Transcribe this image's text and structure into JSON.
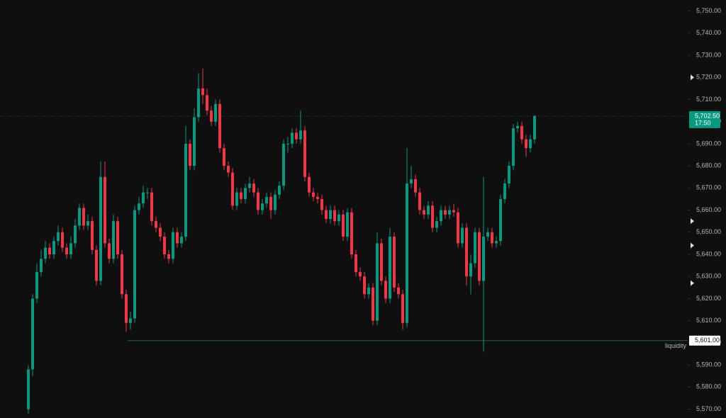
{
  "chart_data": {
    "type": "candlestick",
    "up_color": "#089981",
    "down_color": "#f23645",
    "ylim": [
      5566,
      5755
    ],
    "yticks": [
      {
        "value": 5570,
        "label": "5,570.00"
      },
      {
        "value": 5580,
        "label": "5,580.00"
      },
      {
        "value": 5590,
        "label": "5,590.00"
      },
      {
        "value": 5600,
        "label": "5,600.00"
      },
      {
        "value": 5610,
        "label": "5,610.00"
      },
      {
        "value": 5620,
        "label": "5,620.00"
      },
      {
        "value": 5630,
        "label": "5,630.00"
      },
      {
        "value": 5640,
        "label": "5,640.00"
      },
      {
        "value": 5650,
        "label": "5,650.00"
      },
      {
        "value": 5660,
        "label": "5,660.00"
      },
      {
        "value": 5670,
        "label": "5,670.00"
      },
      {
        "value": 5680,
        "label": "5,680.00"
      },
      {
        "value": 5690,
        "label": "5,690.00"
      },
      {
        "value": 5700,
        "label": "5,700.00"
      },
      {
        "value": 5710,
        "label": "5,710.00"
      },
      {
        "value": 5720,
        "label": "5,720.00"
      },
      {
        "value": 5730,
        "label": "5,730.00"
      },
      {
        "value": 5740,
        "label": "5,740.00"
      },
      {
        "value": 5750,
        "label": "5,750.00"
      }
    ],
    "open": [
      5570,
      5588,
      5620,
      5632,
      5638,
      5643,
      5640,
      5646,
      5650,
      5643,
      5640,
      5645,
      5653,
      5661,
      5653,
      5655,
      5642,
      5628,
      5675,
      5645,
      5638,
      5655,
      5640,
      5622,
      5609,
      5611,
      5660,
      5663,
      5668,
      5668,
      5655,
      5652,
      5648,
      5640,
      5638,
      5650,
      5645,
      5648,
      5690,
      5680,
      5702,
      5715,
      5712,
      5705,
      5700,
      5708,
      5688,
      5680,
      5677,
      5662,
      5668,
      5665,
      5670,
      5672,
      5668,
      5660,
      5663,
      5666,
      5660,
      5667,
      5671,
      5690,
      5690,
      5695,
      5692,
      5696,
      5675,
      5668,
      5666,
      5665,
      5660,
      5656,
      5660,
      5655,
      5658,
      5648,
      5659,
      5640,
      5632,
      5630,
      5622,
      5625,
      5610,
      5645,
      5628,
      5620,
      5648,
      5625,
      5622,
      5609,
      5672,
      5674,
      5668,
      5660,
      5658,
      5662,
      5652,
      5655,
      5660,
      5658,
      5660,
      5659,
      5645,
      5652,
      5630,
      5636,
      5650,
      5628,
      5648,
      5650,
      5645,
      5646,
      5665,
      5672,
      5680,
      5697,
      5698,
      5692,
      5688,
      5692
    ],
    "high": [
      5590,
      5622,
      5636,
      5642,
      5646,
      5645,
      5648,
      5653,
      5652,
      5645,
      5648,
      5656,
      5663,
      5663,
      5658,
      5657,
      5644,
      5682,
      5682,
      5647,
      5658,
      5657,
      5642,
      5624,
      5614,
      5662,
      5666,
      5671,
      5670,
      5670,
      5657,
      5654,
      5650,
      5642,
      5652,
      5652,
      5650,
      5698,
      5692,
      5706,
      5722,
      5724,
      5715,
      5707,
      5710,
      5710,
      5690,
      5682,
      5679,
      5670,
      5670,
      5672,
      5675,
      5674,
      5670,
      5665,
      5668,
      5668,
      5669,
      5673,
      5692,
      5693,
      5697,
      5697,
      5705,
      5698,
      5677,
      5670,
      5668,
      5667,
      5662,
      5662,
      5662,
      5660,
      5660,
      5661,
      5661,
      5642,
      5634,
      5632,
      5627,
      5627,
      5650,
      5647,
      5630,
      5652,
      5650,
      5627,
      5624,
      5688,
      5680,
      5676,
      5670,
      5662,
      5664,
      5664,
      5657,
      5662,
      5662,
      5662,
      5663,
      5661,
      5654,
      5654,
      5640,
      5652,
      5652,
      5675,
      5652,
      5652,
      5648,
      5667,
      5674,
      5682,
      5699,
      5700,
      5700,
      5694,
      5694,
      5703
    ],
    "low": [
      5568,
      5585,
      5618,
      5630,
      5636,
      5638,
      5638,
      5644,
      5641,
      5638,
      5638,
      5643,
      5651,
      5651,
      5651,
      5640,
      5626,
      5626,
      5643,
      5636,
      5636,
      5638,
      5620,
      5605,
      5606,
      5609,
      5658,
      5661,
      5665,
      5653,
      5650,
      5646,
      5638,
      5636,
      5636,
      5643,
      5643,
      5646,
      5678,
      5678,
      5700,
      5708,
      5703,
      5698,
      5698,
      5686,
      5678,
      5675,
      5660,
      5660,
      5663,
      5663,
      5668,
      5666,
      5658,
      5658,
      5661,
      5656,
      5658,
      5665,
      5669,
      5686,
      5688,
      5690,
      5690,
      5673,
      5666,
      5664,
      5663,
      5658,
      5654,
      5654,
      5653,
      5653,
      5646,
      5646,
      5638,
      5630,
      5628,
      5620,
      5620,
      5608,
      5608,
      5626,
      5618,
      5618,
      5623,
      5620,
      5606,
      5607,
      5670,
      5666,
      5658,
      5656,
      5656,
      5650,
      5650,
      5653,
      5656,
      5656,
      5657,
      5643,
      5643,
      5626,
      5622,
      5634,
      5626,
      5596,
      5646,
      5643,
      5643,
      5644,
      5663,
      5670,
      5678,
      5695,
      5690,
      5684,
      5686,
      5690
    ],
    "close": [
      5588,
      5620,
      5632,
      5638,
      5643,
      5640,
      5646,
      5650,
      5643,
      5640,
      5645,
      5653,
      5661,
      5653,
      5655,
      5642,
      5628,
      5675,
      5645,
      5638,
      5655,
      5640,
      5622,
      5609,
      5611,
      5660,
      5663,
      5668,
      5668,
      5655,
      5652,
      5648,
      5640,
      5638,
      5650,
      5645,
      5648,
      5690,
      5680,
      5702,
      5715,
      5712,
      5705,
      5700,
      5708,
      5688,
      5680,
      5677,
      5662,
      5668,
      5665,
      5670,
      5672,
      5668,
      5660,
      5663,
      5666,
      5660,
      5667,
      5671,
      5690,
      5690,
      5695,
      5692,
      5696,
      5675,
      5668,
      5666,
      5665,
      5660,
      5656,
      5660,
      5655,
      5658,
      5648,
      5659,
      5640,
      5632,
      5630,
      5622,
      5625,
      5610,
      5645,
      5628,
      5620,
      5648,
      5625,
      5622,
      5609,
      5672,
      5674,
      5668,
      5660,
      5658,
      5662,
      5652,
      5655,
      5660,
      5658,
      5660,
      5659,
      5645,
      5652,
      5630,
      5636,
      5650,
      5628,
      5648,
      5650,
      5645,
      5646,
      5665,
      5672,
      5680,
      5697,
      5698,
      5692,
      5688,
      5692,
      5702.5
    ],
    "current_price": {
      "value": 5702.5,
      "label": "5,702.50",
      "time": "17:50"
    },
    "level": {
      "value": 5601,
      "label": "5,601.00",
      "text": "liquidity"
    },
    "axis_markers": [
      5720,
      5655,
      5644,
      5627
    ]
  }
}
